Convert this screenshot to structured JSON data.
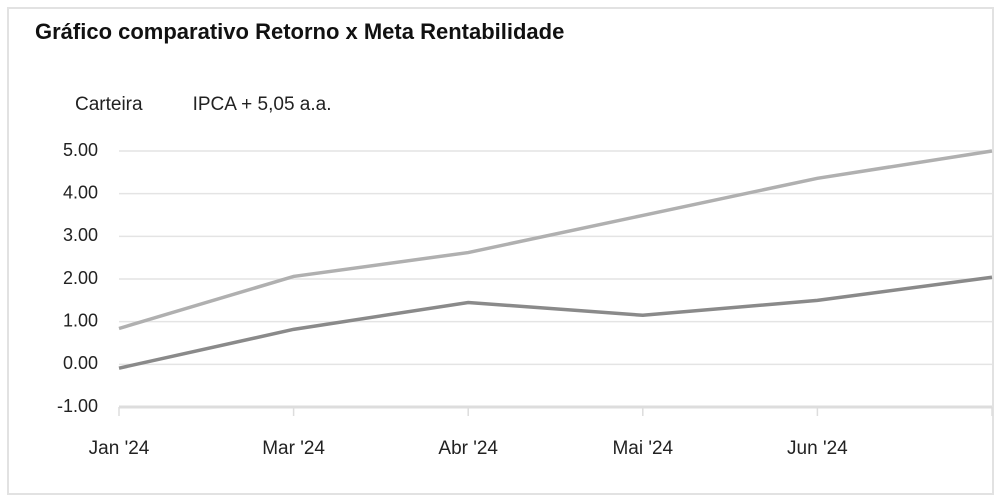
{
  "chart_data": {
    "type": "line",
    "title": "Gráfico comparativo Retorno x Meta Rentabilidade",
    "categories": [
      "Jan '24",
      "Mar '24",
      "Abr '24",
      "Mai '24",
      "Jun '24",
      null
    ],
    "series": [
      {
        "name": "Carteira",
        "color": "#8a8a8a",
        "values": [
          -0.09,
          0.82,
          1.45,
          1.15,
          1.5,
          2.04
        ]
      },
      {
        "name": "IPCA + 5,05 a.a.",
        "color": "#b0b0b0",
        "values": [
          0.84,
          2.06,
          2.62,
          3.49,
          4.36,
          5.0
        ]
      }
    ],
    "ylim": [
      -1,
      5
    ],
    "yticks": [
      {
        "value": -1,
        "label": "-1.00"
      },
      {
        "value": 0,
        "label": "0.00"
      },
      {
        "value": 1,
        "label": "1.00"
      },
      {
        "value": 2,
        "label": "2.00"
      },
      {
        "value": 3,
        "label": "3.00"
      },
      {
        "value": 4,
        "label": "4.00"
      },
      {
        "value": 5,
        "label": "5.00"
      }
    ],
    "grid": true
  }
}
